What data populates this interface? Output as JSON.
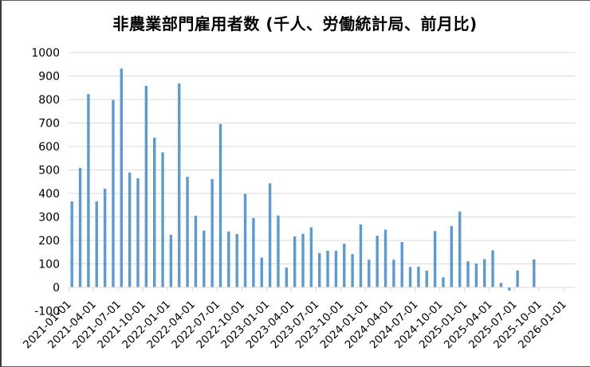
{
  "chart_data": {
    "type": "bar",
    "title": "非農業部門雇用者数 (千人、労働統計局、前月比)",
    "xlabel": "",
    "ylabel": "",
    "ylim": [
      -100,
      1000
    ],
    "yticks": [
      -100,
      0,
      100,
      200,
      300,
      400,
      500,
      600,
      700,
      800,
      900,
      1000
    ],
    "grid": true,
    "legend": null,
    "bar_color": "#5b9bd5",
    "xtick_labels": [
      "2021-01-01",
      "2021-04-01",
      "2021-07-01",
      "2021-10-01",
      "2022-01-01",
      "2022-04-01",
      "2022-07-01",
      "2022-10-01",
      "2023-01-01",
      "2023-04-01",
      "2023-07-01",
      "2023-10-01",
      "2024-01-01",
      "2024-04-01",
      "2024-07-01",
      "2024-10-01",
      "2025-01-01",
      "2025-04-01",
      "2025-07-01",
      "2025-10-01",
      "2026-01-01"
    ],
    "categories": [
      "2021-01",
      "2021-02",
      "2021-03",
      "2021-04",
      "2021-05",
      "2021-06",
      "2021-07",
      "2021-08",
      "2021-09",
      "2021-10",
      "2021-11",
      "2021-12",
      "2022-01",
      "2022-02",
      "2022-03",
      "2022-04",
      "2022-05",
      "2022-06",
      "2022-07",
      "2022-08",
      "2022-09",
      "2022-10",
      "2022-11",
      "2022-12",
      "2023-01",
      "2023-02",
      "2023-03",
      "2023-04",
      "2023-05",
      "2023-06",
      "2023-07",
      "2023-08",
      "2023-09",
      "2023-10",
      "2023-11",
      "2023-12",
      "2024-01",
      "2024-02",
      "2024-03",
      "2024-04",
      "2024-05",
      "2024-06",
      "2024-07",
      "2024-08",
      "2024-09",
      "2024-10",
      "2024-11",
      "2024-12",
      "2025-01",
      "2025-02",
      "2025-03",
      "2025-04",
      "2025-05",
      "2025-06",
      "2025-07",
      "2025-08",
      "2025-09"
    ],
    "values": [
      366,
      509,
      823,
      366,
      420,
      798,
      932,
      489,
      465,
      858,
      637,
      575,
      224,
      868,
      471,
      305,
      242,
      461,
      696,
      238,
      227,
      398,
      295,
      127,
      443,
      306,
      84,
      217,
      228,
      256,
      146,
      156,
      156,
      186,
      142,
      268,
      118,
      220,
      246,
      118,
      193,
      87,
      88,
      71,
      240,
      43,
      261,
      323,
      111,
      102,
      120,
      158,
      19,
      -13,
      72,
      0,
      119
    ]
  }
}
